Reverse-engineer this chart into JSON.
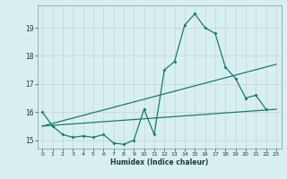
{
  "xlabel": "Humidex (Indice chaleur)",
  "x": [
    0,
    1,
    2,
    3,
    4,
    5,
    6,
    7,
    8,
    9,
    10,
    11,
    12,
    13,
    14,
    15,
    16,
    17,
    18,
    19,
    20,
    21,
    22,
    23
  ],
  "y_main": [
    16.0,
    15.5,
    15.2,
    15.1,
    15.15,
    15.1,
    15.2,
    14.9,
    14.85,
    15.0,
    16.1,
    15.2,
    17.5,
    17.8,
    19.1,
    19.5,
    19.0,
    18.8,
    17.6,
    17.2,
    16.5,
    16.6,
    16.1,
    null
  ],
  "trend1_start": 15.5,
  "trend1_end": 17.7,
  "trend2_start": 15.5,
  "trend2_end": 16.1,
  "line_color": "#1a7a6e",
  "bg_color": "#d8eff0",
  "grid_color": "#c8dfe0",
  "ylim": [
    14.7,
    19.8
  ],
  "yticks": [
    15,
    16,
    17,
    18,
    19
  ],
  "xlim": [
    -0.5,
    23.5
  ]
}
